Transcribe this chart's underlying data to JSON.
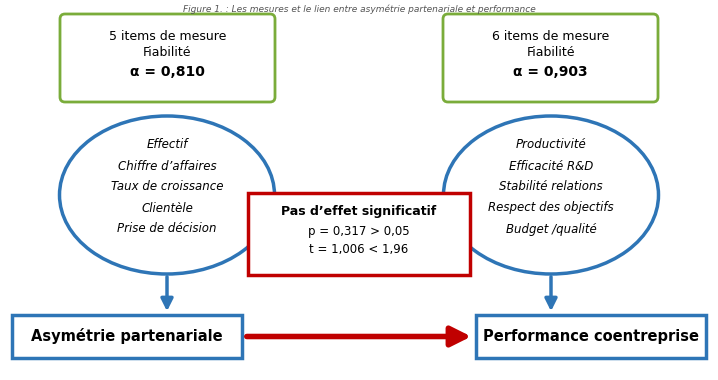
{
  "title": "Figure 1. : Les mesures et le lien entre asymétrie partenariale et performance",
  "left_box_line1": "5 items de mesure",
  "left_box_line2": "Fiabilité",
  "left_box_line3": "α = 0,810",
  "right_box_line1": "6 items de mesure",
  "right_box_line2": "Fiabilité",
  "right_box_line3": "α = 0,903",
  "left_ellipse_lines": [
    "Effectif",
    "Chiffre d’affaires",
    "Taux de croissance",
    "Clientèle",
    "Prise de décision"
  ],
  "right_ellipse_lines": [
    "Productivité",
    "Efficacité R&D",
    "Stabilité relations",
    "Respect des objectifs",
    "Budget /qualité"
  ],
  "center_box_line1": "Pas d’effet significatif",
  "center_box_line2": "p = 0,317 > 0,05",
  "center_box_line3": "t = 1,006 < 1,96",
  "left_bottom_box": "Asymétrie partenariale",
  "right_bottom_box": "Performance coentreprise",
  "green_color": "#7aac3a",
  "blue_color": "#2e75b6",
  "red_color": "#c00000",
  "bg_color": "#ffffff"
}
